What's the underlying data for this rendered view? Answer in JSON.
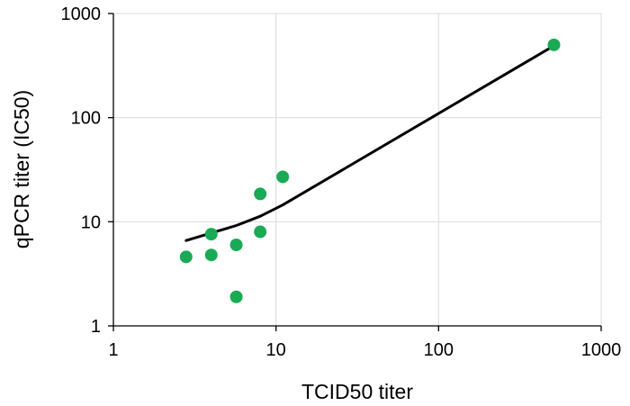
{
  "chart_data": {
    "type": "scatter",
    "title": "",
    "xlabel": "TCID50 titer",
    "ylabel": "qPCR titer (IC50)",
    "xscale": "log",
    "yscale": "log",
    "xlim": [
      1,
      1000
    ],
    "ylim": [
      1,
      1000
    ],
    "grid": true,
    "legend": "none",
    "x_ticks": [
      "1",
      "10",
      "100",
      "1000"
    ],
    "y_ticks": [
      "1",
      "10",
      "100",
      "1000"
    ],
    "series": [
      {
        "kind": "scatter",
        "color": "#1aaa55",
        "points": [
          {
            "x": 2.8,
            "y": 4.6
          },
          {
            "x": 4.0,
            "y": 7.6
          },
          {
            "x": 4.0,
            "y": 4.8
          },
          {
            "x": 5.7,
            "y": 6.0
          },
          {
            "x": 5.7,
            "y": 1.9
          },
          {
            "x": 8.0,
            "y": 18.5
          },
          {
            "x": 8.0,
            "y": 8.0
          },
          {
            "x": 11.0,
            "y": 27.0
          },
          {
            "x": 512,
            "y": 500
          }
        ]
      },
      {
        "kind": "line",
        "color": "#000000",
        "points": [
          {
            "x": 2.8,
            "y": 6.6
          },
          {
            "x": 4.0,
            "y": 7.8
          },
          {
            "x": 5.7,
            "y": 9.2
          },
          {
            "x": 8.0,
            "y": 11.3
          },
          {
            "x": 11.0,
            "y": 14.5
          },
          {
            "x": 512,
            "y": 490
          }
        ]
      }
    ]
  }
}
